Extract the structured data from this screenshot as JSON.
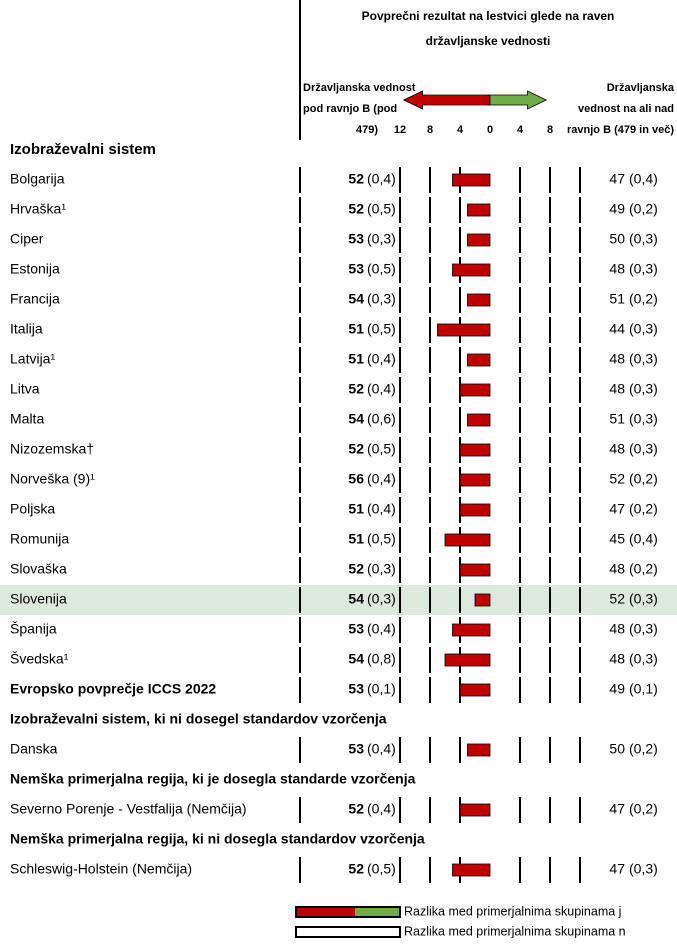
{
  "chart_data": {
    "type": "bar",
    "title_lines": [
      "Povprečni rezultat na lestvici glede na raven",
      "državljanske vednosti"
    ],
    "left_header": [
      "Državljanska vednost",
      "pod ravnjo B (pod",
      "479)"
    ],
    "right_header": [
      "Državljanska",
      "vednost na ali nad",
      "ravnjo B (479 in več)"
    ],
    "xlim": [
      -12,
      12
    ],
    "xticks": [
      {
        "value": -12,
        "label": "12"
      },
      {
        "value": -8,
        "label": "8"
      },
      {
        "value": -4,
        "label": "4"
      },
      0,
      4,
      8
    ],
    "bar_color": "#c00000",
    "arrow_colors": [
      "#c00000",
      "#70ad47"
    ],
    "rows": [
      {
        "section": "Izobraževalni sistem"
      },
      {
        "label": "Bolgarija",
        "left": 52,
        "left_se": "(0,4)",
        "right": 47,
        "right_se": "(0,4)",
        "diff": -5
      },
      {
        "label": "Hrvaška¹",
        "left": 52,
        "left_se": "(0,5)",
        "right": 49,
        "right_se": "(0,2)",
        "diff": -3
      },
      {
        "label": "Ciper",
        "left": 53,
        "left_se": "(0,3)",
        "right": 50,
        "right_se": "(0,3)",
        "diff": -3
      },
      {
        "label": "Estonija",
        "left": 53,
        "left_se": "(0,5)",
        "right": 48,
        "right_se": "(0,3)",
        "diff": -5
      },
      {
        "label": "Francija",
        "left": 54,
        "left_se": "(0,3)",
        "right": 51,
        "right_se": "(0,2)",
        "diff": -3
      },
      {
        "label": "Italija",
        "left": 51,
        "left_se": "(0,5)",
        "right": 44,
        "right_se": "(0,3)",
        "diff": -7
      },
      {
        "label": "Latvija¹",
        "left": 51,
        "left_se": "(0,4)",
        "right": 48,
        "right_se": "(0,3)",
        "diff": -3
      },
      {
        "label": "Litva",
        "left": 52,
        "left_se": "(0,4)",
        "right": 48,
        "right_se": "(0,3)",
        "diff": -4
      },
      {
        "label": "Malta",
        "left": 54,
        "left_se": "(0,6)",
        "right": 51,
        "right_se": "(0,3)",
        "diff": -3
      },
      {
        "label": "Nizozemska†",
        "left": 52,
        "left_se": "(0,5)",
        "right": 48,
        "right_se": "(0,3)",
        "diff": -4
      },
      {
        "label": "Norveška (9)¹",
        "left": 56,
        "left_se": "(0,4)",
        "right": 52,
        "right_se": "(0,2)",
        "diff": -4
      },
      {
        "label": "Poljska",
        "left": 51,
        "left_se": "(0,4)",
        "right": 47,
        "right_se": "(0,2)",
        "diff": -4
      },
      {
        "label": "Romunija",
        "left": 51,
        "left_se": "(0,5)",
        "right": 45,
        "right_se": "(0,4)",
        "diff": -6
      },
      {
        "label": "Slovaška",
        "left": 52,
        "left_se": "(0,3)",
        "right": 48,
        "right_se": "(0,2)",
        "diff": -4
      },
      {
        "label": "Slovenija",
        "left": 54,
        "left_se": "(0,3)",
        "right": 52,
        "right_se": "(0,3)",
        "diff": -2,
        "highlight": true
      },
      {
        "label": "Španija",
        "left": 53,
        "left_se": "(0,4)",
        "right": 48,
        "right_se": "(0,3)",
        "diff": -5
      },
      {
        "label": "Švedska¹",
        "left": 54,
        "left_se": "(0,8)",
        "right": 48,
        "right_se": "(0,3)",
        "diff": -6
      },
      {
        "label": "Evropsko povprečje ICCS 2022",
        "left": 53,
        "left_se": "(0,1)",
        "right": 49,
        "right_se": "(0,1)",
        "diff": -4,
        "bold_label": true
      },
      {
        "section": "Izobraževalni sistem, ki ni dosegel standardov vzorčenja"
      },
      {
        "label": "Danska",
        "left": 53,
        "left_se": "(0,4)",
        "right": 50,
        "right_se": "(0,2)",
        "diff": -3
      },
      {
        "section": "Nemška primerjalna regija, ki je dosegla standarde vzorčenja"
      },
      {
        "label": "Severno Porenje - Vestfalija (Nemčija)",
        "left": 52,
        "left_se": "(0,4)",
        "right": 47,
        "right_se": "(0,2)",
        "diff": -4
      },
      {
        "section": "Nemška primerjalna regija, ki ni dosegla standardov vzorčenja"
      },
      {
        "label": "Schleswig-Holstein (Nemčija)",
        "left": 52,
        "left_se": "(0,5)",
        "right": 47,
        "right_se": "(0,3)",
        "diff": -5
      }
    ],
    "legend": [
      {
        "label": "Razlika med primerjalnima skupinama j",
        "fills": [
          "#c00000",
          "#70ad47"
        ]
      },
      {
        "label": "Razlika med primerjalnima skupinama n",
        "fills": [
          "#ffffff"
        ]
      }
    ]
  }
}
